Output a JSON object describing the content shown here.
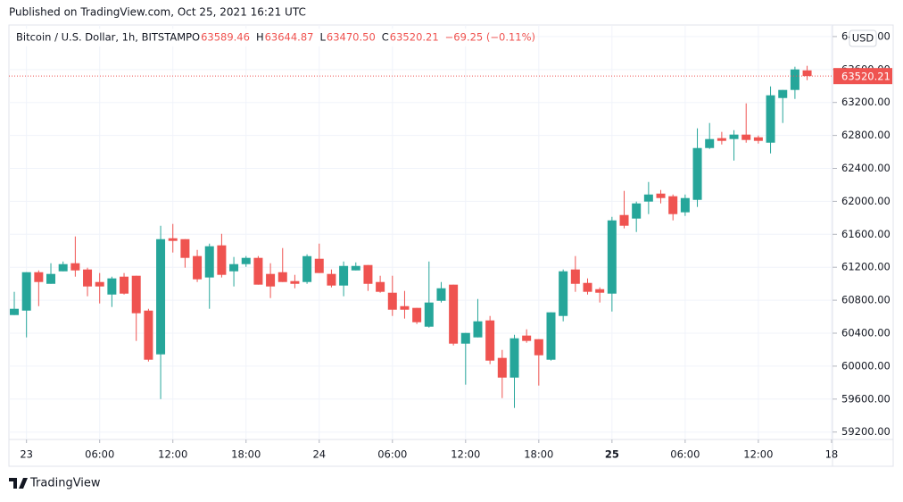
{
  "published": "Published on TradingView.com, Oct 25, 2021 16:21 UTC",
  "footer": "TradingView",
  "chart_data": {
    "type": "candlestick",
    "title": "Bitcoin / U.S. Dollar, 1h, BITSTAMP",
    "legend_keys": [
      "O",
      "H",
      "L",
      "C"
    ],
    "legend_values": [
      "63589.46",
      "63644.87",
      "63470.50",
      "63520.21"
    ],
    "change": "−69.25 (−0.11%)",
    "currency": "USD",
    "up_color": "#26a69a",
    "down_color": "#ef5350",
    "grid": true,
    "open": [
      60620,
      60674,
      61140,
      60999,
      61151,
      61249,
      61173,
      61021,
      60869,
      61086,
      61097,
      60674,
      60143,
      61552,
      61541,
      61336,
      61076,
      61466,
      61151,
      61238,
      61314,
      61119,
      61140,
      61032,
      61021,
      61303,
      61119,
      60978,
      61162,
      61227,
      61021,
      60891,
      60728,
      60707,
      60479,
      60793,
      60989,
      60273,
      60349,
      60555,
      60100,
      59861,
      60371,
      60327,
      60078,
      60609,
      61173,
      61010,
      60934,
      60880,
      61834,
      61791,
      61997,
      62094,
      62062,
      61867,
      62018,
      62647,
      62767,
      62756,
      62810,
      62777,
      62712,
      63254,
      63352,
      63589.46
    ],
    "high": [
      60902,
      61140,
      61162,
      61249,
      61270,
      61574,
      61195,
      61130,
      61086,
      61130,
      61097,
      60696,
      61704,
      61726,
      61541,
      61411,
      61487,
      61606,
      61325,
      61336,
      61336,
      61249,
      61433,
      61108,
      61357,
      61487,
      61173,
      61270,
      61259,
      61227,
      61097,
      61097,
      60913,
      60707,
      61270,
      61021,
      60989,
      60403,
      60815,
      60609,
      60197,
      60381,
      60447,
      60327,
      60653,
      61173,
      61336,
      61065,
      60956,
      61812,
      62127,
      61997,
      62235,
      62138,
      62083,
      62083,
      62886,
      62951,
      62843,
      62864,
      63189,
      62799,
      63395,
      63352,
      63634,
      63644.87
    ],
    "low": [
      60620,
      60349,
      60728,
      60999,
      61151,
      61086,
      60848,
      60761,
      60718,
      60869,
      60306,
      60056,
      59601,
      61379,
      61195,
      61021,
      60696,
      61076,
      60967,
      61205,
      60989,
      60826,
      61021,
      60945,
      60999,
      61130,
      60956,
      60848,
      61162,
      60913,
      60891,
      60609,
      60577,
      60511,
      60468,
      60772,
      60251,
      59775,
      60349,
      60024,
      59612,
      59493,
      60284,
      59764,
      60067,
      60544,
      60902,
      60869,
      60772,
      60663,
      61672,
      61628,
      61845,
      61975,
      61769,
      61823,
      61932,
      62636,
      62690,
      62495,
      62712,
      62701,
      62582,
      62951,
      63243,
      63470.5
    ],
    "close": [
      60696,
      61140,
      61021,
      61119,
      61238,
      61162,
      60967,
      60967,
      61065,
      60880,
      60642,
      60078,
      61541,
      61520,
      61314,
      61054,
      61455,
      61108,
      61238,
      61314,
      60989,
      60967,
      61021,
      60999,
      61335,
      61130,
      60978,
      61216,
      61216,
      60999,
      60902,
      60685,
      60685,
      60533,
      60772,
      60945,
      60273,
      60403,
      60544,
      60067,
      59861,
      60338,
      60306,
      60132,
      60653,
      61151,
      60999,
      60902,
      60891,
      61769,
      61704,
      61975,
      62083,
      62040,
      61845,
      62040,
      62647,
      62756,
      62734,
      62810,
      62745,
      62734,
      63287,
      63352,
      63601,
      63520.21
    ],
    "xlim": [
      -0.44,
      67.08
    ],
    "xticks": [
      {
        "value": 1,
        "label": "23"
      },
      {
        "value": 7,
        "label": "06:00"
      },
      {
        "value": 13,
        "label": "12:00"
      },
      {
        "value": 19,
        "label": "18:00"
      },
      {
        "value": 25,
        "label": "24"
      },
      {
        "value": 31,
        "label": "06:00"
      },
      {
        "value": 37,
        "label": "12:00"
      },
      {
        "value": 43,
        "label": "18:00"
      },
      {
        "value": 49,
        "label": "25"
      },
      {
        "value": 55,
        "label": "06:00"
      },
      {
        "value": 61,
        "label": "12:00"
      },
      {
        "value": 67,
        "label": "18"
      }
    ],
    "ylim": [
      59110,
      64140
    ],
    "yticks": [
      {
        "value": 59200,
        "label": "59200.00"
      },
      {
        "value": 59600,
        "label": "59600.00"
      },
      {
        "value": 60000,
        "label": "60000.00"
      },
      {
        "value": 60400,
        "label": "60400.00"
      },
      {
        "value": 60800,
        "label": "60800.00"
      },
      {
        "value": 61200,
        "label": "61200.00"
      },
      {
        "value": 61600,
        "label": "61600.00"
      },
      {
        "value": 62000,
        "label": "62000.00"
      },
      {
        "value": 62400,
        "label": "62400.00"
      },
      {
        "value": 62800,
        "label": "62800.00"
      },
      {
        "value": 63200,
        "label": "63200.00"
      },
      {
        "value": 63600,
        "label": "63600.00"
      },
      {
        "value": 64000,
        "label": "64000.00"
      }
    ]
  }
}
